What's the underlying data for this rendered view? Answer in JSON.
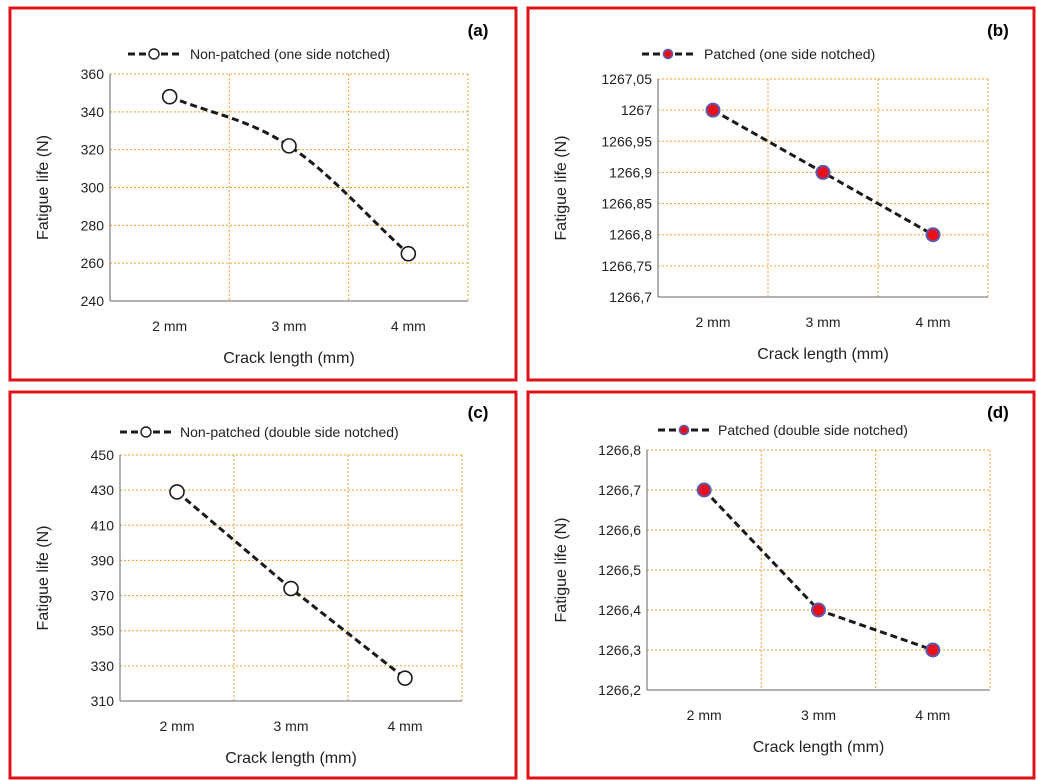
{
  "colors": {
    "panel_border": "#e0101a",
    "grid": "#f0a030",
    "line": "#1a1a1a",
    "marker_fill_open": "#ffffff",
    "marker_fill_patched": "#e8101a",
    "marker_stroke_patched": "#5a5ab0"
  },
  "chart_data": [
    {
      "panel_label": "(a)",
      "type": "line",
      "legend": "Non-patched (one side notched)",
      "legend_position": "top",
      "marker": "open-circle",
      "smooth": true,
      "categories": [
        "2 mm",
        "3 mm",
        "4 mm"
      ],
      "series": [
        {
          "name": "Non-patched (one side notched)",
          "values": [
            348,
            322,
            265
          ]
        }
      ],
      "xlabel": "Crack length (mm)",
      "ylabel": "Fatigue life (N)",
      "ylim": [
        240,
        360
      ],
      "yticks": [
        "240",
        "260",
        "280",
        "300",
        "320",
        "340",
        "360"
      ],
      "grid": true
    },
    {
      "panel_label": "(b)",
      "type": "line",
      "legend": "Patched (one side notched)",
      "legend_position": "top",
      "marker": "filled-circle",
      "smooth": false,
      "categories": [
        "2 mm",
        "3 mm",
        "4 mm"
      ],
      "series": [
        {
          "name": "Patched (one side notched)",
          "values": [
            1267.0,
            1266.9,
            1266.8
          ]
        }
      ],
      "xlabel": "Crack length (mm)",
      "ylabel": "Fatigue life (N)",
      "ylim": [
        1266.7,
        1267.05
      ],
      "yticks": [
        "1266,7",
        "1266,75",
        "1266,8",
        "1266,85",
        "1266,9",
        "1266,95",
        "1267",
        "1267,05"
      ],
      "grid": true
    },
    {
      "panel_label": "(c)",
      "type": "line",
      "legend": "Non-patched  (double side notched)",
      "legend_position": "top",
      "marker": "open-circle",
      "smooth": false,
      "categories": [
        "2 mm",
        "3 mm",
        "4 mm"
      ],
      "series": [
        {
          "name": "Non-patched  (double side notched)",
          "values": [
            429,
            374,
            323
          ]
        }
      ],
      "xlabel": "Crack length (mm)",
      "ylabel": "Fatigue life (N)",
      "ylim": [
        310,
        450
      ],
      "yticks": [
        "310",
        "330",
        "350",
        "370",
        "390",
        "410",
        "430",
        "450"
      ],
      "grid": true
    },
    {
      "panel_label": "(d)",
      "type": "line",
      "legend": "Patched  (double side notched)",
      "legend_position": "top",
      "marker": "filled-circle",
      "smooth": false,
      "categories": [
        "2 mm",
        "3 mm",
        "4 mm"
      ],
      "series": [
        {
          "name": "Patched  (double side notched)",
          "values": [
            1266.7,
            1266.4,
            1266.3
          ]
        }
      ],
      "xlabel": "Crack length (mm)",
      "ylabel": "Fatigue life (N)",
      "ylim": [
        1266.2,
        1266.8
      ],
      "yticks": [
        "1266,2",
        "1266,3",
        "1266,4",
        "1266,5",
        "1266,6",
        "1266,7",
        "1266,8"
      ],
      "grid": true
    }
  ]
}
